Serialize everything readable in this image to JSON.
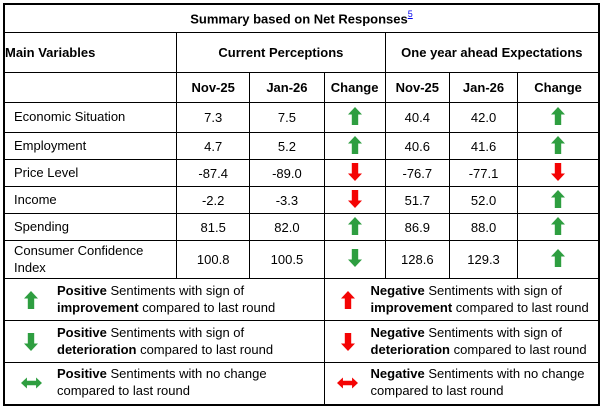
{
  "title": {
    "text": "Summary based on Net Responses",
    "footnote": "5"
  },
  "headers": {
    "main_variables": "Main Variables",
    "current": "Current Perceptions",
    "ahead": "One year ahead Expectations",
    "sub": [
      "Nov-25",
      "Jan-26",
      "Change"
    ]
  },
  "colors": {
    "green": "#2e9e40",
    "red": "#f40404",
    "footnote_link": "#0000ee"
  },
  "rows": [
    {
      "label": "Economic Situation",
      "cur": {
        "nov": "7.3",
        "jan": "7.5",
        "change": "up-green"
      },
      "exp": {
        "nov": "40.4",
        "jan": "42.0",
        "change": "up-green"
      }
    },
    {
      "label": "Employment",
      "cur": {
        "nov": "4.7",
        "jan": "5.2",
        "change": "up-green"
      },
      "exp": {
        "nov": "40.6",
        "jan": "41.6",
        "change": "up-green"
      }
    },
    {
      "label": "Price Level",
      "cur": {
        "nov": "-87.4",
        "jan": "-89.0",
        "change": "down-red"
      },
      "exp": {
        "nov": "-76.7",
        "jan": "-77.1",
        "change": "down-red"
      }
    },
    {
      "label": "Income",
      "cur": {
        "nov": "-2.2",
        "jan": "-3.3",
        "change": "down-red"
      },
      "exp": {
        "nov": "51.7",
        "jan": "52.0",
        "change": "up-green"
      }
    },
    {
      "label": "Spending",
      "cur": {
        "nov": "81.5",
        "jan": "82.0",
        "change": "up-green"
      },
      "exp": {
        "nov": "86.9",
        "jan": "88.0",
        "change": "up-green"
      }
    },
    {
      "label": "Consumer Confidence Index",
      "cur": {
        "nov": "100.8",
        "jan": "100.5",
        "change": "down-green"
      },
      "exp": {
        "nov": "128.6",
        "jan": "129.3",
        "change": "up-green"
      }
    }
  ],
  "legend": [
    {
      "arrow": "up-green",
      "segments": [
        {
          "text": "Positive",
          "bold": true
        },
        {
          "text": " Sentiments with sign of ",
          "bold": false
        },
        {
          "text": "improvement",
          "bold": true
        },
        {
          "text": " compared to last round",
          "bold": false
        }
      ]
    },
    {
      "arrow": "up-red",
      "segments": [
        {
          "text": "Negative",
          "bold": true
        },
        {
          "text": " Sentiments with sign of ",
          "bold": false
        },
        {
          "text": "improvement",
          "bold": true
        },
        {
          "text": " compared to last round",
          "bold": false
        }
      ]
    },
    {
      "arrow": "down-green",
      "segments": [
        {
          "text": "Positive",
          "bold": true
        },
        {
          "text": " Sentiments with sign of ",
          "bold": false
        },
        {
          "text": "deterioration",
          "bold": true
        },
        {
          "text": " compared to last round",
          "bold": false
        }
      ]
    },
    {
      "arrow": "down-red",
      "segments": [
        {
          "text": "Negative",
          "bold": true
        },
        {
          "text": " Sentiments with sign of ",
          "bold": false
        },
        {
          "text": "deterioration",
          "bold": true
        },
        {
          "text": " compared to last round",
          "bold": false
        }
      ]
    },
    {
      "arrow": "both-green",
      "segments": [
        {
          "text": "Positive",
          "bold": true
        },
        {
          "text": " Sentiments with no change compared to last round",
          "bold": false
        }
      ]
    },
    {
      "arrow": "both-red",
      "segments": [
        {
          "text": "Negative",
          "bold": true
        },
        {
          "text": " Sentiments with no change compared to last round",
          "bold": false
        }
      ]
    }
  ]
}
